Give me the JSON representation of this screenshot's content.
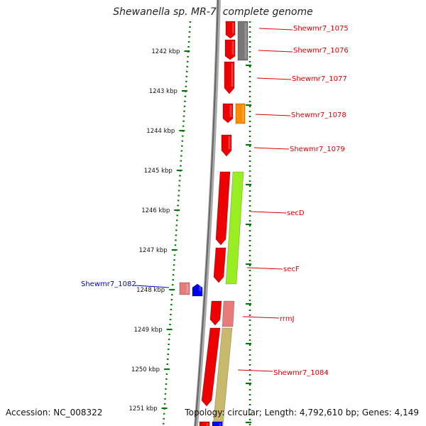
{
  "title": "Shewanella sp. MR-7, complete genome",
  "footer": {
    "accession": "Accession: NC_008322",
    "summary": "Topology: circular; Length: 4,792,610 bp; Genes: 4,149"
  },
  "colors": {
    "ruler": "#007700",
    "backbone": "#888888",
    "gene_red": "#ee0000",
    "gene_gray": "#777777",
    "gene_orange": "#ff8c00",
    "gene_lightgreen": "#99ee22",
    "gene_pink": "#e87a7a",
    "gene_khaki": "#c8b96c",
    "gene_blue": "#0000ee",
    "label_red": "#dd0000",
    "label_blue": "#0000cc"
  },
  "ruler_ticks": [
    "1242 kbp",
    "1243 kbp",
    "1244 kbp",
    "1245 kbp",
    "1246 kbp",
    "1247 kbp",
    "1248 kbp",
    "1249 kbp",
    "1250 kbp",
    "1251 kbp"
  ],
  "gene_labels": [
    {
      "text": "Shewmr7_1075",
      "color": "red"
    },
    {
      "text": "Shewmr7_1076",
      "color": "red"
    },
    {
      "text": "Shewmr7_1077",
      "color": "red"
    },
    {
      "text": "Shewmr7_1078",
      "color": "red"
    },
    {
      "text": "Shewmr7_1079",
      "color": "red"
    },
    {
      "text": "secD",
      "color": "red"
    },
    {
      "text": "secF",
      "color": "red"
    },
    {
      "text": "Shewmr7_1082",
      "color": "blue"
    },
    {
      "text": "rrmJ",
      "color": "red"
    },
    {
      "text": "Shewmr7_1084",
      "color": "red"
    }
  ]
}
